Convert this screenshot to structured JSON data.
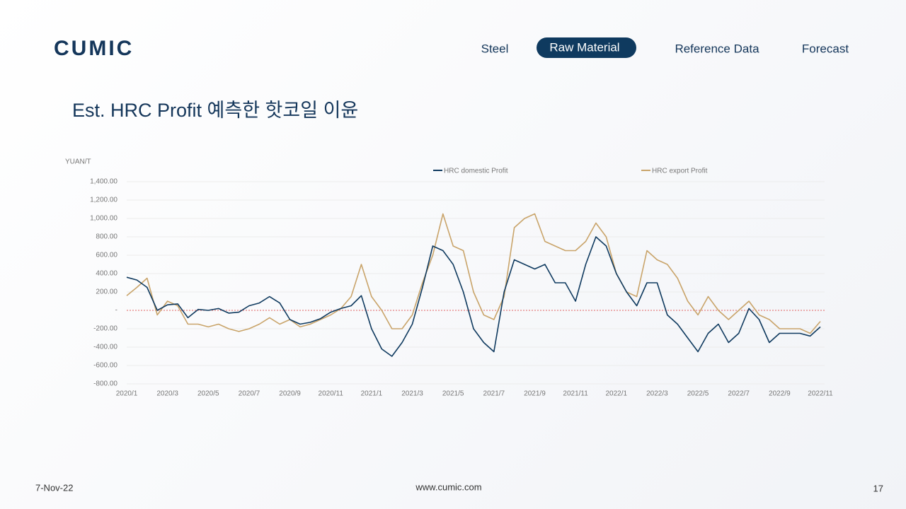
{
  "header": {
    "logo": "CUMIC",
    "nav": [
      "Steel",
      "Raw Material",
      "Reference Data",
      "Forecast"
    ]
  },
  "title": "Est. HRC Profit 예측한 핫코일 이윤",
  "chart_data": {
    "type": "line",
    "y_label": "YUAN/T",
    "categories": [
      "2020/1",
      null,
      null,
      null,
      "2020/3",
      null,
      null,
      null,
      "2020/5",
      null,
      null,
      null,
      "2020/7",
      null,
      null,
      null,
      "2020/9",
      null,
      null,
      null,
      "2020/11",
      null,
      null,
      null,
      "2021/1",
      null,
      null,
      null,
      "2021/3",
      null,
      null,
      null,
      "2021/5",
      null,
      null,
      null,
      "2021/7",
      null,
      null,
      null,
      "2021/9",
      null,
      null,
      null,
      "2021/11",
      null,
      null,
      null,
      "2022/1",
      null,
      null,
      null,
      "2022/3",
      null,
      null,
      null,
      "2022/5",
      null,
      null,
      null,
      "2022/7",
      null,
      null,
      null,
      "2022/9",
      null,
      null,
      null,
      "2022/11"
    ],
    "series": [
      {
        "name": "HRC domestic Profit",
        "color": "#0f3a5f",
        "values": [
          360,
          330,
          250,
          0,
          60,
          70,
          -80,
          10,
          0,
          20,
          -30,
          -20,
          50,
          80,
          150,
          80,
          -100,
          -150,
          -130,
          -90,
          -20,
          20,
          50,
          160,
          -200,
          -420,
          -500,
          -350,
          -150,
          250,
          700,
          650,
          500,
          200,
          -200,
          -350,
          -450,
          200,
          550,
          500,
          450,
          500,
          300,
          300,
          100,
          500,
          800,
          700,
          400,
          200,
          50,
          300,
          300,
          -50,
          -150,
          -300,
          -450,
          -250,
          -150,
          -350,
          -250,
          20,
          -100,
          -350,
          -250,
          -250,
          -250,
          -280,
          -180
        ]
      },
      {
        "name": "HRC export Profit",
        "color": "#c9a46a",
        "values": [
          160,
          250,
          350,
          -50,
          100,
          50,
          -150,
          -150,
          -180,
          -150,
          -200,
          -230,
          -200,
          -150,
          -80,
          -150,
          -100,
          -180,
          -150,
          -100,
          -50,
          20,
          150,
          500,
          150,
          0,
          -200,
          -200,
          -50,
          300,
          600,
          1050,
          700,
          650,
          200,
          -50,
          -100,
          150,
          900,
          1000,
          1050,
          750,
          700,
          650,
          650,
          750,
          950,
          800,
          400,
          200,
          150,
          650,
          550,
          500,
          350,
          100,
          -50,
          150,
          0,
          -100,
          0,
          100,
          -50,
          -100,
          -200,
          -200,
          -200,
          -250,
          -120
        ]
      }
    ],
    "ylim": [
      -800,
      1400
    ],
    "yticks": [
      {
        "value": -800,
        "label": "-800.00"
      },
      {
        "value": -600,
        "label": "-600.00"
      },
      {
        "value": -400,
        "label": "-400.00"
      },
      {
        "value": -200,
        "label": "-200.00"
      },
      {
        "value": 0,
        "label": "-"
      },
      {
        "value": 200,
        "label": "200.00"
      },
      {
        "value": 400,
        "label": "400.00"
      },
      {
        "value": 600,
        "label": "600.00"
      },
      {
        "value": 800,
        "label": "800.00"
      },
      {
        "value": 1000,
        "label": "1,000.00"
      },
      {
        "value": 1200,
        "label": "1,200.00"
      },
      {
        "value": 1400,
        "label": "1,400.00"
      }
    ],
    "grid": true
  },
  "footer": {
    "date": "7-Nov-22",
    "url": "www.cumic.com",
    "page": "17"
  }
}
